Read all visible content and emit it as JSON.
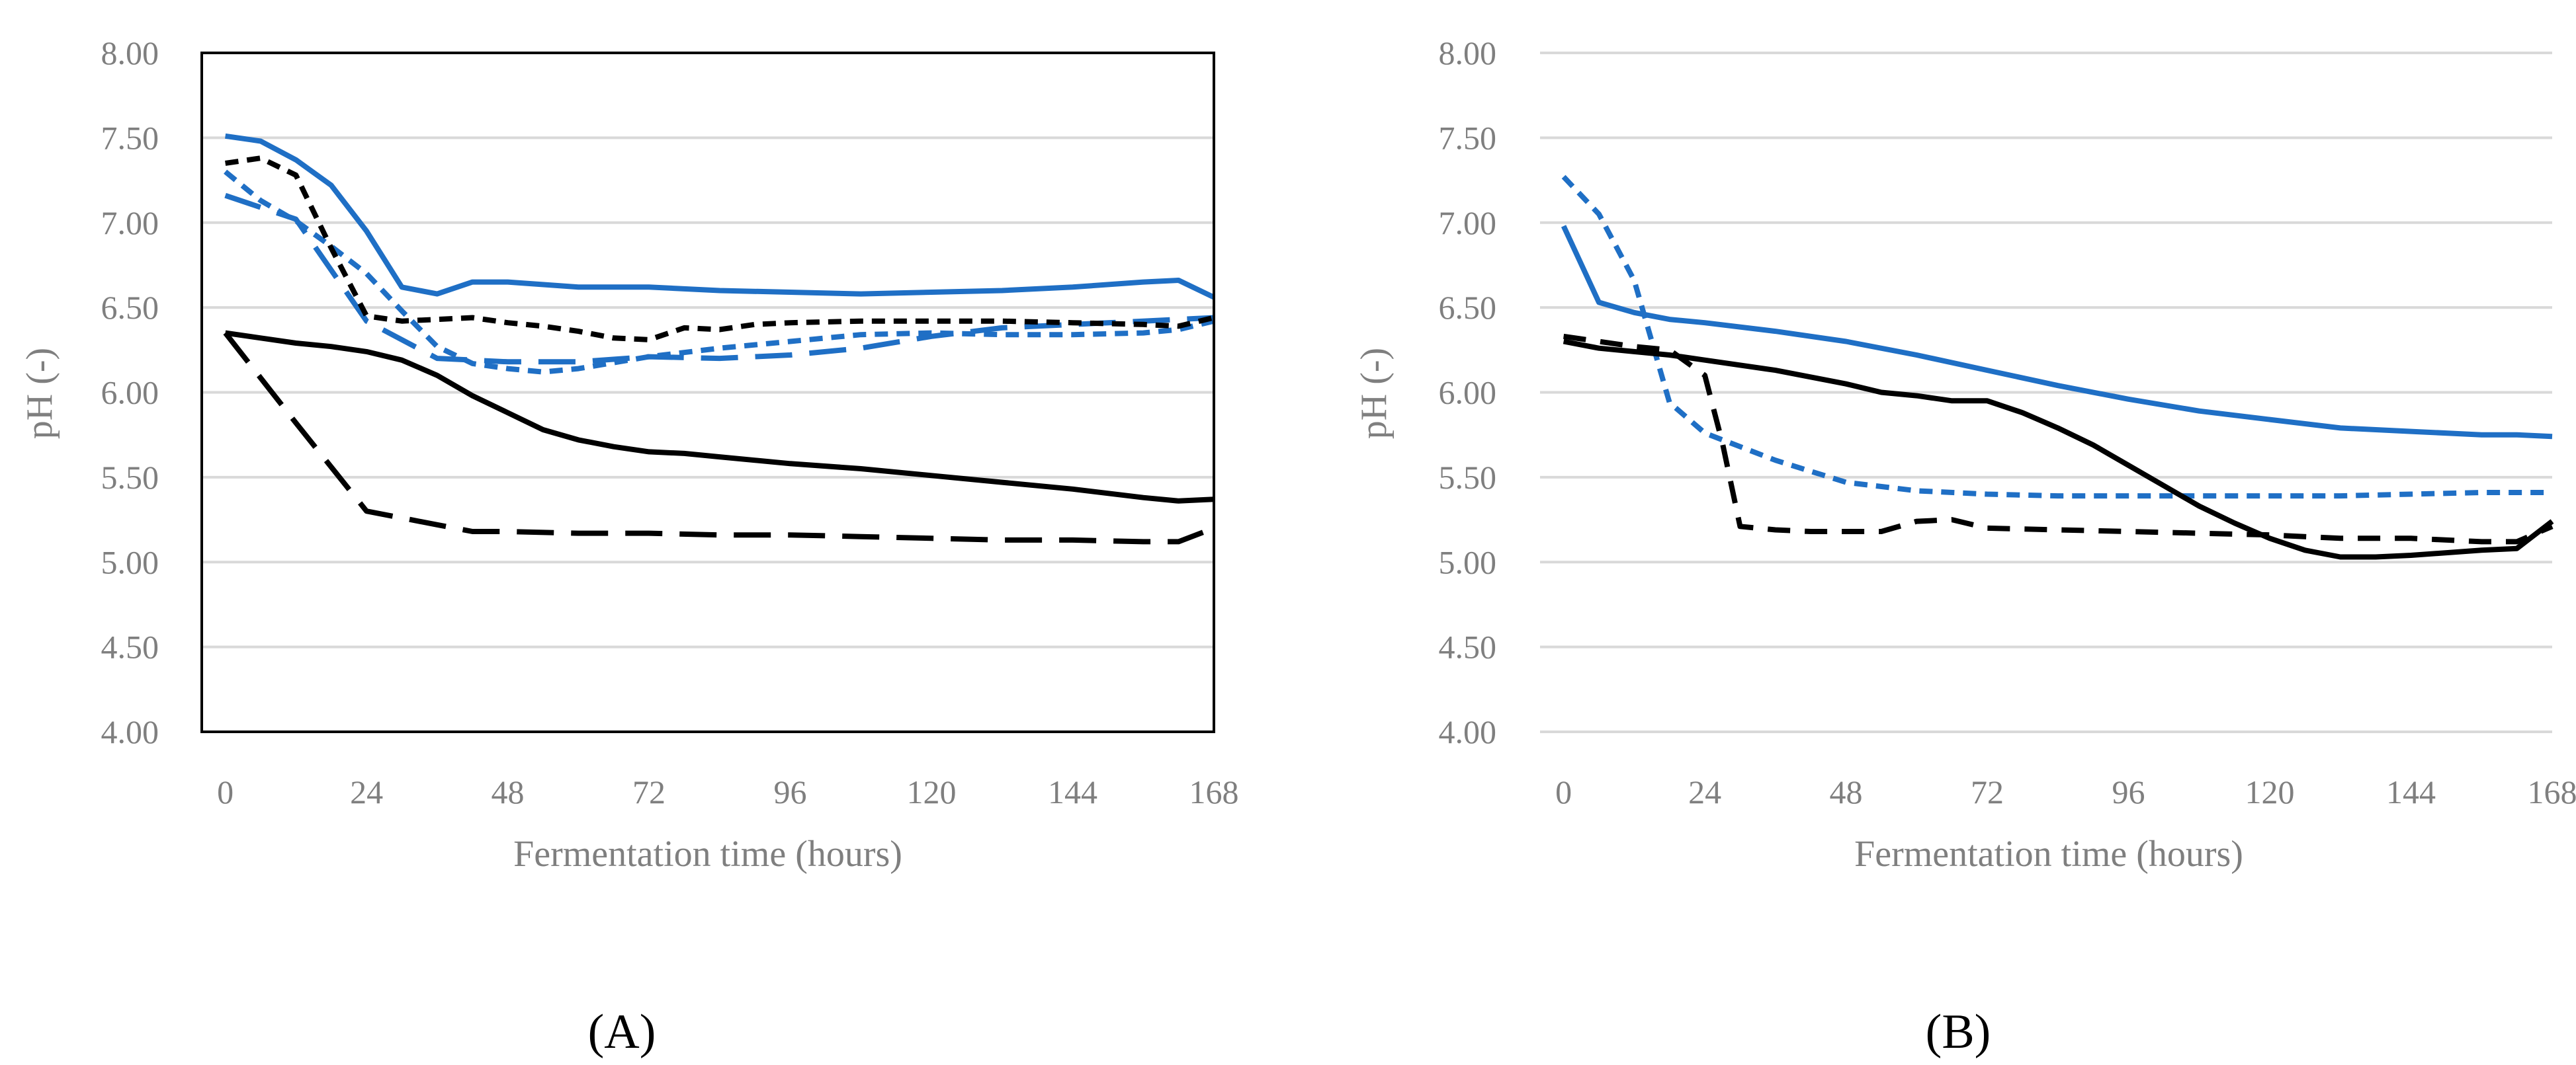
{
  "chart_data": [
    {
      "type": "line",
      "panel": "A",
      "panel_label": "(A)",
      "xlabel": "Fermentation time (hours)",
      "ylabel": "pH (-)",
      "xlim": [
        -4,
        168
      ],
      "ylim": [
        4.0,
        8.0
      ],
      "x_ticks": [
        "0",
        "24",
        "48",
        "72",
        "96",
        "120",
        "144",
        "168"
      ],
      "y_ticks": [
        "4.00",
        "4.50",
        "5.00",
        "5.50",
        "6.00",
        "6.50",
        "7.00",
        "7.50",
        "8.00"
      ],
      "grid": true,
      "series": [
        {
          "name": "blue-solid",
          "color": "#1f6fc5",
          "dash": "solid",
          "x": [
            0,
            6,
            12,
            18,
            24,
            30,
            36,
            42,
            48,
            60,
            72,
            84,
            96,
            108,
            120,
            132,
            144,
            156,
            162,
            168
          ],
          "y": [
            7.51,
            7.48,
            7.37,
            7.22,
            6.95,
            6.62,
            6.58,
            6.65,
            6.65,
            6.62,
            6.62,
            6.6,
            6.59,
            6.58,
            6.59,
            6.6,
            6.62,
            6.65,
            6.66,
            6.56
          ]
        },
        {
          "name": "blue-long-dash",
          "color": "#1f6fc5",
          "dash": "long",
          "x": [
            0,
            12,
            24,
            36,
            48,
            60,
            72,
            84,
            96,
            108,
            120,
            132,
            144,
            156,
            162,
            168
          ],
          "y": [
            7.16,
            7.02,
            6.42,
            6.2,
            6.18,
            6.18,
            6.21,
            6.2,
            6.22,
            6.26,
            6.33,
            6.38,
            6.4,
            6.42,
            6.43,
            6.44
          ]
        },
        {
          "name": "blue-short-dash",
          "color": "#1f6fc5",
          "dash": "short",
          "x": [
            0,
            6,
            12,
            18,
            24,
            30,
            36,
            42,
            48,
            54,
            60,
            72,
            84,
            96,
            108,
            120,
            132,
            144,
            156,
            162,
            168
          ],
          "y": [
            7.3,
            7.13,
            7.01,
            6.86,
            6.7,
            6.48,
            6.27,
            6.17,
            6.14,
            6.12,
            6.14,
            6.21,
            6.26,
            6.3,
            6.34,
            6.35,
            6.34,
            6.34,
            6.35,
            6.37,
            6.42
          ]
        },
        {
          "name": "black-solid",
          "color": "#000000",
          "dash": "solid",
          "x": [
            0,
            6,
            12,
            18,
            24,
            30,
            36,
            42,
            48,
            54,
            60,
            66,
            72,
            78,
            84,
            96,
            108,
            120,
            132,
            144,
            156,
            162,
            168
          ],
          "y": [
            6.35,
            6.32,
            6.29,
            6.27,
            6.24,
            6.19,
            6.1,
            5.98,
            5.88,
            5.78,
            5.72,
            5.68,
            5.65,
            5.64,
            5.62,
            5.58,
            5.55,
            5.51,
            5.47,
            5.43,
            5.38,
            5.36,
            5.37
          ]
        },
        {
          "name": "black-long-dash",
          "color": "#000000",
          "dash": "long",
          "x": [
            0,
            12,
            24,
            36,
            42,
            48,
            60,
            72,
            84,
            96,
            108,
            120,
            132,
            144,
            156,
            162,
            168
          ],
          "y": [
            6.35,
            5.82,
            5.3,
            5.22,
            5.18,
            5.18,
            5.17,
            5.17,
            5.16,
            5.16,
            5.15,
            5.14,
            5.13,
            5.13,
            5.12,
            5.12,
            5.2
          ]
        },
        {
          "name": "black-short-dash",
          "color": "#000000",
          "dash": "short",
          "x": [
            0,
            6,
            12,
            18,
            24,
            30,
            36,
            42,
            48,
            54,
            60,
            66,
            72,
            78,
            84,
            90,
            96,
            108,
            120,
            132,
            144,
            156,
            162,
            168
          ],
          "y": [
            7.35,
            7.38,
            7.28,
            6.85,
            6.45,
            6.42,
            6.43,
            6.44,
            6.41,
            6.39,
            6.36,
            6.32,
            6.31,
            6.38,
            6.37,
            6.4,
            6.41,
            6.42,
            6.42,
            6.42,
            6.41,
            6.4,
            6.39,
            6.44
          ]
        }
      ]
    },
    {
      "type": "line",
      "panel": "B",
      "panel_label": "(B)",
      "xlabel": "Fermentation time (hours)",
      "ylabel": "pH (-)",
      "xlim": [
        -4,
        168
      ],
      "ylim": [
        4.0,
        8.0
      ],
      "x_ticks": [
        "0",
        "24",
        "48",
        "72",
        "96",
        "120",
        "144",
        "168"
      ],
      "y_ticks": [
        "4.00",
        "4.50",
        "5.00",
        "5.50",
        "6.00",
        "6.50",
        "7.00",
        "7.50",
        "8.00"
      ],
      "grid": true,
      "series": [
        {
          "name": "blue-solid",
          "color": "#1f6fc5",
          "dash": "solid",
          "x": [
            0,
            6,
            12,
            18,
            24,
            36,
            48,
            60,
            72,
            84,
            96,
            108,
            120,
            132,
            144,
            156,
            162,
            168
          ],
          "y": [
            6.98,
            6.53,
            6.47,
            6.43,
            6.41,
            6.36,
            6.3,
            6.22,
            6.13,
            6.04,
            5.96,
            5.89,
            5.84,
            5.79,
            5.77,
            5.75,
            5.75,
            5.74
          ]
        },
        {
          "name": "blue-short-dash",
          "color": "#1f6fc5",
          "dash": "short",
          "x": [
            0,
            6,
            12,
            18,
            24,
            36,
            48,
            60,
            72,
            84,
            96,
            108,
            120,
            132,
            144,
            156,
            162,
            168
          ],
          "y": [
            7.27,
            7.05,
            6.66,
            5.94,
            5.76,
            5.6,
            5.47,
            5.42,
            5.4,
            5.39,
            5.39,
            5.39,
            5.39,
            5.39,
            5.4,
            5.41,
            5.41,
            5.41
          ]
        },
        {
          "name": "black-solid",
          "color": "#000000",
          "dash": "solid",
          "x": [
            0,
            6,
            12,
            18,
            24,
            36,
            48,
            54,
            60,
            66,
            72,
            78,
            84,
            90,
            96,
            102,
            108,
            114,
            120,
            126,
            132,
            138,
            144,
            156,
            162,
            168
          ],
          "y": [
            6.3,
            6.26,
            6.24,
            6.22,
            6.19,
            6.13,
            6.05,
            6.0,
            5.98,
            5.95,
            5.95,
            5.88,
            5.79,
            5.69,
            5.57,
            5.45,
            5.33,
            5.23,
            5.14,
            5.07,
            5.03,
            5.03,
            5.04,
            5.07,
            5.08,
            5.24
          ]
        },
        {
          "name": "black-short-dash",
          "color": "#000000",
          "dash": "medium",
          "x": [
            0,
            6,
            12,
            18,
            24,
            27,
            30,
            36,
            42,
            48,
            54,
            60,
            66,
            72,
            84,
            96,
            108,
            120,
            132,
            144,
            156,
            162,
            168
          ],
          "y": [
            6.33,
            6.3,
            6.27,
            6.25,
            6.1,
            5.7,
            5.21,
            5.19,
            5.18,
            5.18,
            5.18,
            5.24,
            5.25,
            5.2,
            5.19,
            5.18,
            5.17,
            5.16,
            5.14,
            5.14,
            5.12,
            5.12,
            5.21
          ]
        }
      ]
    }
  ]
}
